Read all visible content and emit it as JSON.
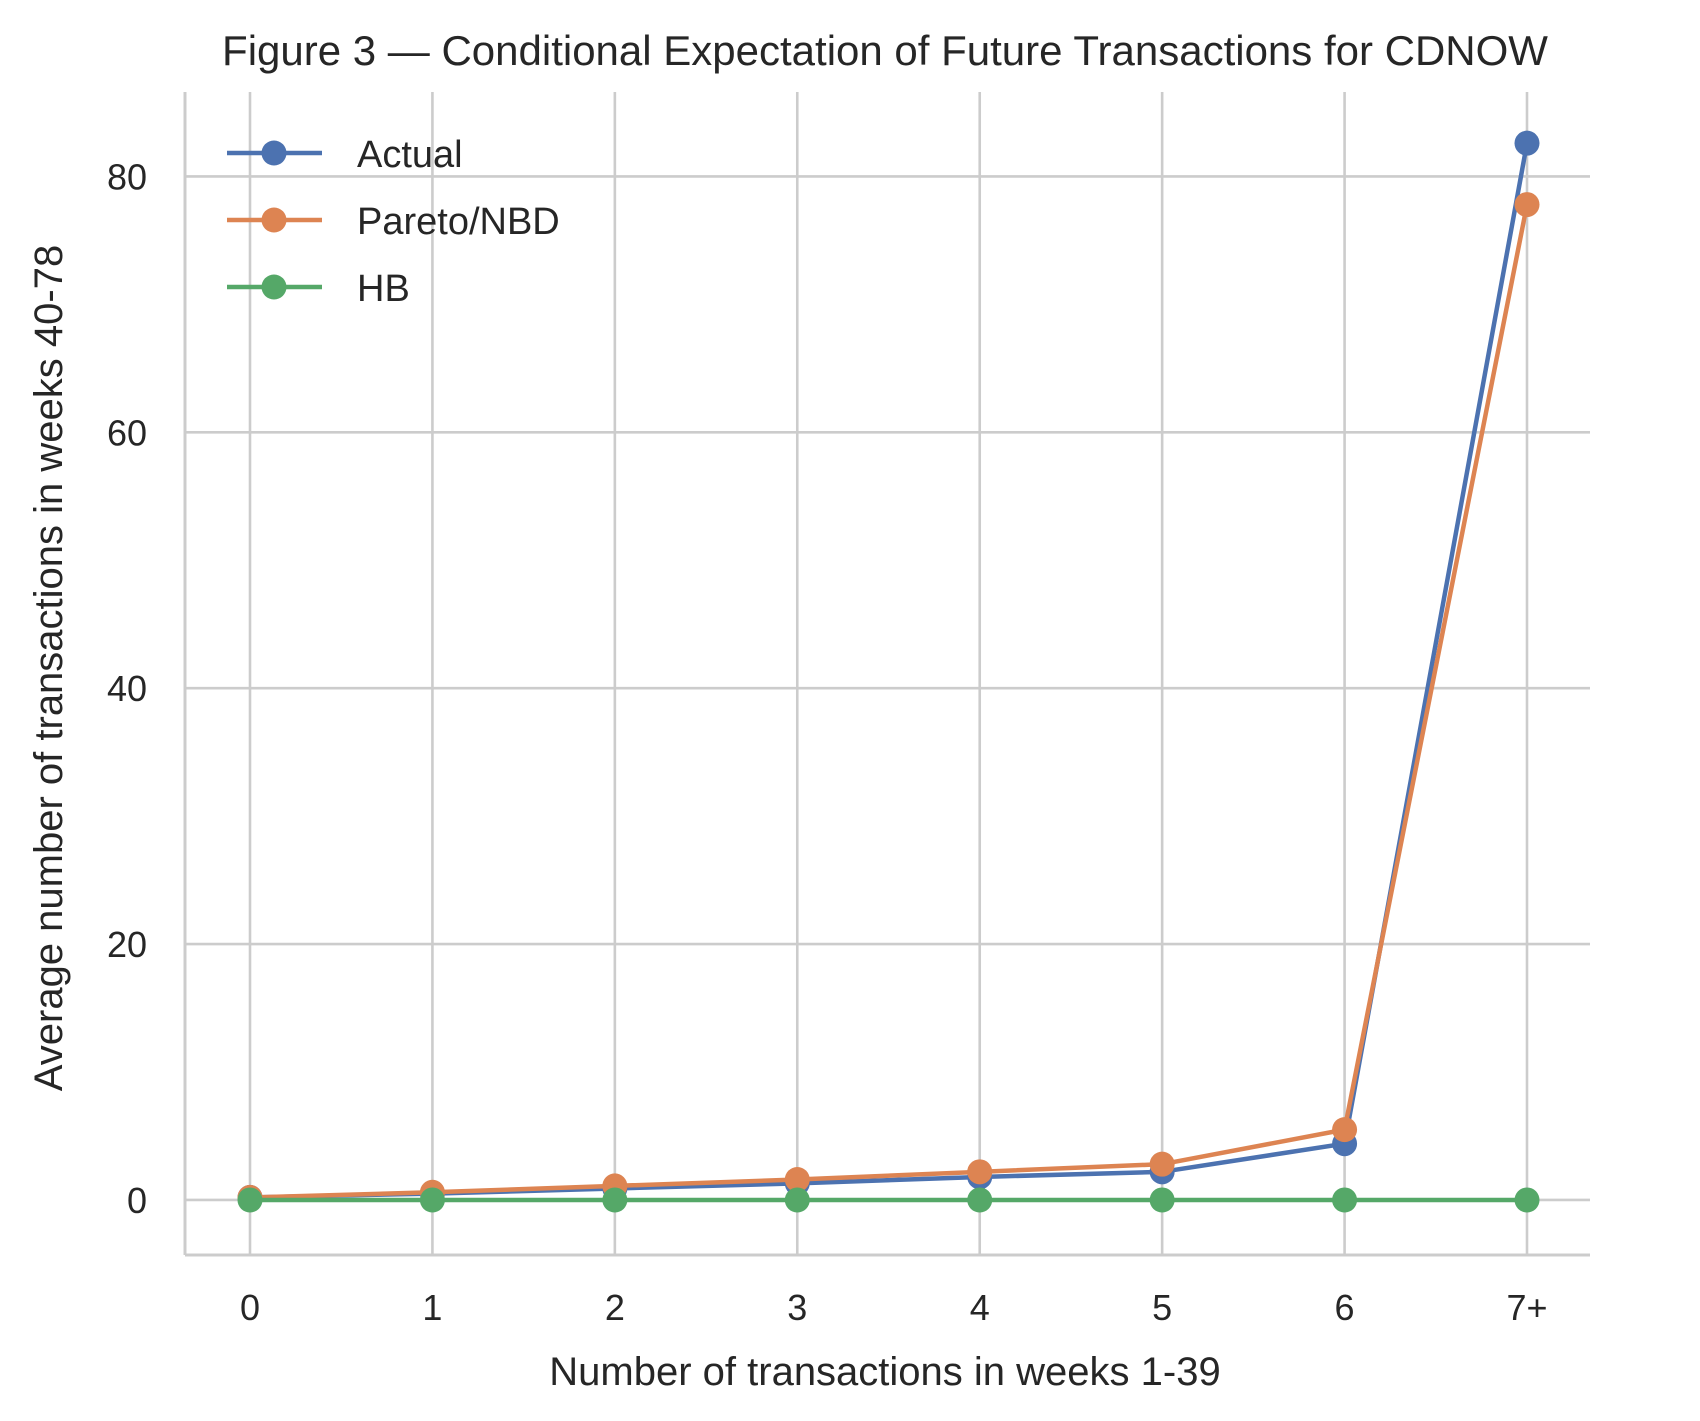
{
  "chart_data": {
    "type": "line",
    "title": "Figure 3 — Conditional Expectation of Future Transactions for CDNOW",
    "xlabel": "Number of transactions in weeks 1-39",
    "ylabel": "Average number of transactions in weeks 40-78",
    "categories": [
      "0",
      "1",
      "2",
      "3",
      "4",
      "5",
      "6",
      "7+"
    ],
    "yticks": [
      "0",
      "20",
      "40",
      "60",
      "80"
    ],
    "ytick_values": [
      0,
      20,
      40,
      60,
      80
    ],
    "ylim": [
      -4.3,
      86.6
    ],
    "grid": true,
    "legend_position": "top-left",
    "series": [
      {
        "name": "Actual",
        "color": "#4c72b0",
        "values": [
          0.2,
          0.5,
          0.9,
          1.3,
          1.8,
          2.2,
          4.4,
          82.6
        ]
      },
      {
        "name": "Pareto/NBD",
        "color": "#dd8452",
        "values": [
          0.2,
          0.6,
          1.1,
          1.6,
          2.2,
          2.8,
          5.5,
          77.8
        ]
      },
      {
        "name": "HB",
        "color": "#55a868",
        "values": [
          0.0,
          0.0,
          0.0,
          0.0,
          0.0,
          0.0,
          0.0,
          0.0
        ]
      }
    ]
  }
}
